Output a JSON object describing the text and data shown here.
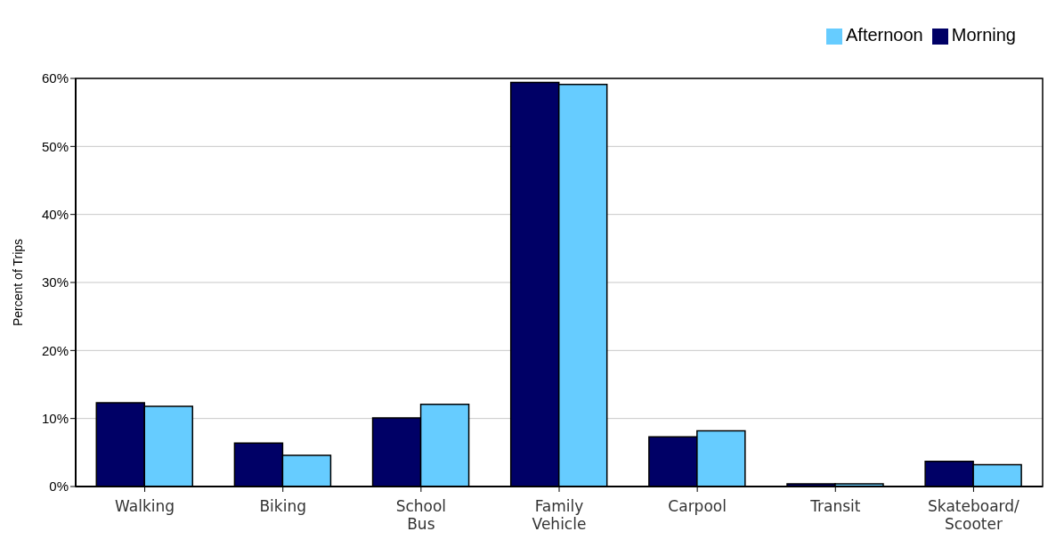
{
  "chart_data": {
    "type": "bar",
    "ylabel": "Percent of Trips",
    "categories": [
      "Walking",
      "Biking",
      "School Bus",
      "Family Vehicle",
      "Carpool",
      "Transit",
      "Skateboard/ Scooter"
    ],
    "series": [
      {
        "name": "Morning",
        "color": "#000066",
        "values": [
          12.3,
          6.4,
          10.1,
          59.4,
          7.3,
          0.4,
          3.7
        ]
      },
      {
        "name": "Afternoon",
        "color": "#66ccff",
        "values": [
          11.8,
          4.6,
          12.1,
          59.1,
          8.2,
          0.4,
          3.2
        ]
      }
    ],
    "ylim": [
      0,
      60
    ],
    "yticks": [
      {
        "value": 0,
        "label": "0%"
      },
      {
        "value": 10,
        "label": "10%"
      },
      {
        "value": 20,
        "label": "20%"
      },
      {
        "value": 30,
        "label": "30%"
      },
      {
        "value": 40,
        "label": "40%"
      },
      {
        "value": 50,
        "label": "50%"
      },
      {
        "value": 60,
        "label": "60%"
      }
    ],
    "grid": "y",
    "legend": "top right"
  }
}
